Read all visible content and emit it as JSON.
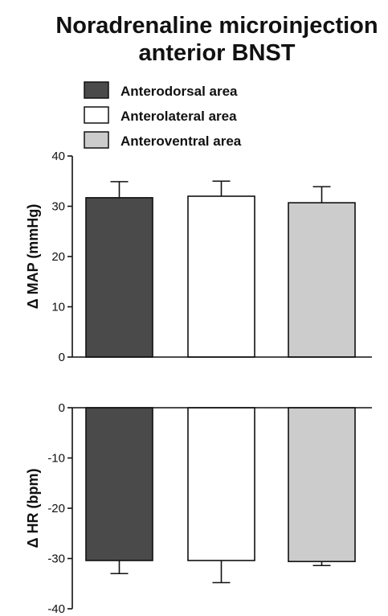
{
  "chart_data": {
    "type": "bar",
    "title_line1": "Noradrenaline microinjection",
    "title_line2": "anterior BNST",
    "legend_placement": "top-left",
    "series": [
      {
        "name": "Anterodorsal area",
        "color": "#4a4a4a"
      },
      {
        "name": "Anterolateral area",
        "color": "#ffffff"
      },
      {
        "name": "Anteroventral area",
        "color": "#cccccc"
      }
    ],
    "panels": [
      {
        "ylabel": "Δ MAP (mmHg)",
        "ylim": [
          0,
          40
        ],
        "ticks": [
          0,
          10,
          20,
          30,
          40
        ],
        "values": [
          31.7,
          32.0,
          30.7
        ],
        "errors": [
          3.2,
          3.0,
          3.2
        ]
      },
      {
        "ylabel": "Δ HR (bpm)",
        "ylim": [
          -40,
          0
        ],
        "ticks": [
          0,
          -10,
          -20,
          -30,
          -40
        ],
        "values": [
          -30.4,
          -30.4,
          -30.6
        ],
        "errors": [
          2.6,
          4.4,
          0.8
        ]
      }
    ]
  }
}
